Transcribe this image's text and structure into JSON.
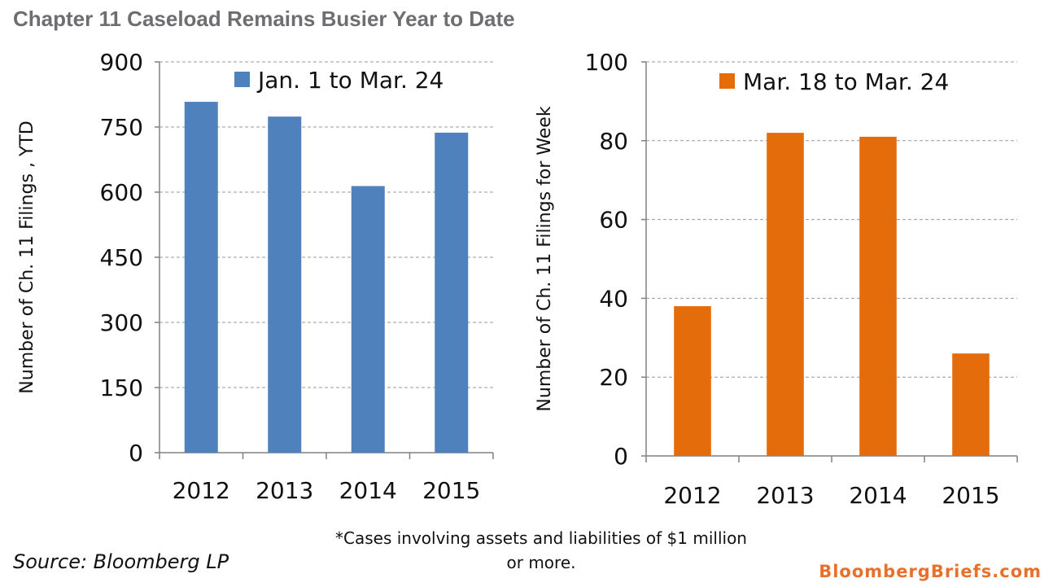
{
  "title": "Chapter 11 Caseload Remains Busier Year to Date",
  "source": "Source: Bloomberg LP",
  "footnote": "*Cases involving assets and liabilities of $1 million or more.",
  "brand": "BloombergBriefs.com",
  "chart_data": [
    {
      "type": "bar",
      "categories": [
        "2012",
        "2013",
        "2014",
        "2015"
      ],
      "series": [
        {
          "name": "Jan. 1 to Mar. 24",
          "values": [
            808,
            774,
            614,
            737
          ]
        }
      ],
      "ylabel": "Number of Ch. 11 Filings , YTD",
      "ylim": [
        0,
        900
      ],
      "yticks": [
        0,
        150,
        300,
        450,
        600,
        750,
        900
      ],
      "grid": true,
      "legend": "top-right",
      "color": "#4f81bd"
    },
    {
      "type": "bar",
      "categories": [
        "2012",
        "2013",
        "2014",
        "2015"
      ],
      "series": [
        {
          "name": "Mar. 18 to Mar. 24",
          "values": [
            38,
            82,
            81,
            26
          ]
        }
      ],
      "ylabel": "Number of Ch. 11 Filings for Week",
      "ylim": [
        0,
        100
      ],
      "yticks": [
        0,
        20,
        40,
        60,
        80,
        100
      ],
      "grid": true,
      "legend": "top-right",
      "color": "#e46c0a"
    }
  ]
}
